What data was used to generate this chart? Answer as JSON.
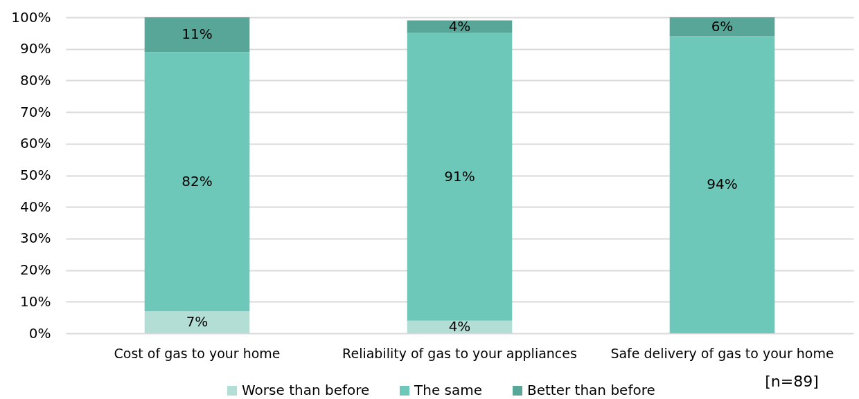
{
  "chart_data": {
    "type": "bar",
    "stacked": true,
    "categories": [
      "Cost of gas to your home",
      "Reliability of gas to your appliances",
      "Safe delivery of gas to your home"
    ],
    "series": [
      {
        "name": "Worse than before",
        "color": "#b3ded6",
        "values": [
          7,
          4,
          null
        ],
        "value_labels": [
          "7%",
          "4%",
          null
        ]
      },
      {
        "name": "The same",
        "color": "#6dc8b9",
        "values": [
          82,
          91,
          94
        ],
        "value_labels": [
          "82%",
          "91%",
          "94%"
        ]
      },
      {
        "name": "Better than before",
        "color": "#57a698",
        "values": [
          11,
          4,
          6
        ],
        "value_labels": [
          "11%",
          "4%",
          "6%"
        ]
      }
    ],
    "ylim": [
      0,
      100
    ],
    "yticks": [
      {
        "value": 0,
        "label": "0%"
      },
      {
        "value": 10,
        "label": "10%"
      },
      {
        "value": 20,
        "label": "20%"
      },
      {
        "value": 30,
        "label": "30%"
      },
      {
        "value": 40,
        "label": "40%"
      },
      {
        "value": 50,
        "label": "50%"
      },
      {
        "value": 60,
        "label": "60%"
      },
      {
        "value": 70,
        "label": "70%"
      },
      {
        "value": 80,
        "label": "80%"
      },
      {
        "value": 90,
        "label": "90%"
      },
      {
        "value": 100,
        "label": "100%"
      }
    ],
    "grid": "y",
    "legend": "bottom",
    "annotations": [
      "[n=89]"
    ]
  }
}
